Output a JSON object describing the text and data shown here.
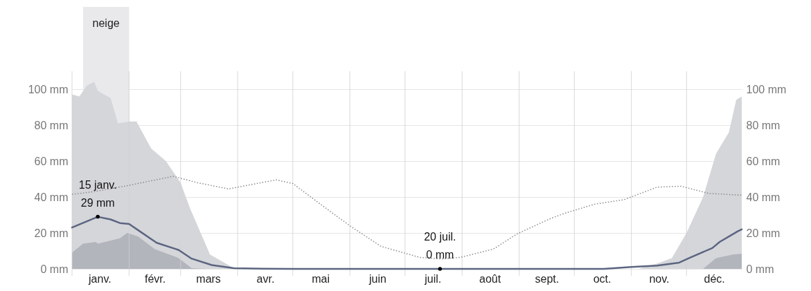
{
  "chart_data": {
    "type": "line",
    "xlim": [
      "--01-01",
      "--12-31"
    ],
    "xticks": [
      {
        "value": "--01-01",
        "label": null
      },
      {
        "value": "--01-16",
        "label": "janv."
      },
      {
        "value": "--02-01",
        "label": null
      },
      {
        "value": "--02-15",
        "label": "févr."
      },
      {
        "value": "--03-01",
        "label": null
      },
      {
        "value": "--03-16",
        "label": "mars"
      },
      {
        "value": "--04-01",
        "label": null
      },
      {
        "value": "--04-16",
        "label": "avr."
      },
      {
        "value": "--05-01",
        "label": null
      },
      {
        "value": "--05-16",
        "label": "mai"
      },
      {
        "value": "--06-01",
        "label": null
      },
      {
        "value": "--06-16",
        "label": "juin"
      },
      {
        "value": "--07-01",
        "label": null
      },
      {
        "value": "--07-16",
        "label": "juil."
      },
      {
        "value": "--08-01",
        "label": null
      },
      {
        "value": "--08-16",
        "label": "août"
      },
      {
        "value": "--09-01",
        "label": null
      },
      {
        "value": "--09-16",
        "label": "sept."
      },
      {
        "value": "--10-01",
        "label": null
      },
      {
        "value": "--10-16",
        "label": "oct."
      },
      {
        "value": "--11-01",
        "label": null
      },
      {
        "value": "--11-16",
        "label": "nov."
      },
      {
        "value": "--12-01",
        "label": null
      },
      {
        "value": "--12-16",
        "label": "déc."
      }
    ],
    "ylim": [
      0,
      110
    ],
    "yticks": [
      {
        "value": 0,
        "label": "0 mm"
      },
      {
        "value": 20,
        "label": "20 mm"
      },
      {
        "value": 40,
        "label": "40 mm"
      },
      {
        "value": 60,
        "label": "60 mm"
      },
      {
        "value": 80,
        "label": "80 mm"
      },
      {
        "value": 100,
        "label": "100 mm"
      }
    ],
    "y2lim": [
      0,
      110
    ],
    "y2ticks": [
      {
        "value": 0,
        "label": "0 mm"
      },
      {
        "value": 20,
        "label": "20 mm"
      },
      {
        "value": 40,
        "label": "40 mm"
      },
      {
        "value": 60,
        "label": "60 mm"
      },
      {
        "value": 80,
        "label": "80 mm"
      },
      {
        "value": 100,
        "label": "100 mm"
      }
    ],
    "grid": true,
    "bands": [
      {
        "axis": "x",
        "from": "--01-07",
        "to": "--02-01",
        "label": "neige",
        "color": "#e9e9ec"
      }
    ],
    "series": [
      {
        "type": "area",
        "color": "#d5d6da",
        "x": [
          "--01-01",
          "--01-05",
          "--01-09",
          "--01-13",
          "--01-15",
          "--01-22",
          "--01-26",
          "--02-01",
          "--02-05",
          "--02-13",
          "--02-21",
          "--03-01",
          "--03-06",
          "--03-17",
          "--03-30",
          "--04-05",
          "--11-05",
          "--11-15",
          "--11-23",
          "--12-01",
          "--12-10",
          "--12-17",
          "--12-24",
          "--12-28",
          "--12-31"
        ],
        "values": [
          97,
          96,
          102,
          104,
          99,
          95,
          81,
          82,
          82,
          67,
          60,
          48,
          34,
          8,
          0.4,
          0,
          0,
          3,
          6,
          20,
          40,
          64,
          76,
          94,
          96
        ]
      },
      {
        "type": "area",
        "color": "#b3b5bd",
        "x": [
          "--01-01",
          "--01-07",
          "--01-14",
          "--01-15",
          "--01-27",
          "--01-31",
          "--02-06",
          "--02-15",
          "--02-28",
          "--03-07",
          "--03-15",
          "--12-10",
          "--12-17",
          "--12-26",
          "--12-31"
        ],
        "values": [
          9,
          14,
          15,
          14,
          17,
          20,
          18,
          11,
          6,
          0.4,
          0,
          0,
          6,
          8,
          8.5
        ]
      },
      {
        "color": "#5b6580",
        "x": [
          "--01-01",
          "--01-15",
          "--01-22",
          "--01-27",
          "--02-01",
          "--02-06",
          "--02-16",
          "--02-28",
          "--03-07",
          "--03-18",
          "--03-30",
          "--04-15",
          "--05-01",
          "--07-20",
          "--10-17",
          "--11-01",
          "--11-15",
          "--11-27",
          "--12-03",
          "--12-15",
          "--12-19",
          "--12-25",
          "--12-29",
          "--12-31"
        ],
        "values": [
          23,
          29,
          27.5,
          25.5,
          25,
          21.5,
          14.5,
          10.5,
          5.7,
          2.1,
          0.4,
          0.1,
          0,
          0,
          0,
          1.1,
          1.8,
          3.5,
          6.3,
          11.6,
          15,
          18.6,
          21,
          22
        ]
      },
      {
        "color": "#8a8a8a",
        "line_style": "dotted",
        "x": [
          "--01-01",
          "--01-13",
          "--02-01",
          "--02-25",
          "--03-10",
          "--03-27",
          "--04-22",
          "--05-01",
          "--05-16",
          "--06-01",
          "--06-18",
          "--07-09",
          "--07-21",
          "--07-31",
          "--08-18",
          "--08-31",
          "--09-18",
          "--09-26",
          "--10-12",
          "--10-28",
          "--11-15",
          "--11-28",
          "--12-13",
          "--12-31"
        ],
        "values": [
          41.5,
          43,
          46.5,
          51.5,
          48,
          44.5,
          49.5,
          47.5,
          36,
          24,
          12.5,
          6.4,
          5.5,
          6.4,
          11,
          19.5,
          28,
          31,
          36,
          38.5,
          45.5,
          46,
          42,
          41
        ]
      }
    ],
    "annotations": [
      {
        "text": "15 janv.\n29 mm",
        "x": "--01-15",
        "y": 29
      },
      {
        "text": "20 juil.\n0 mm",
        "x": "--07-20",
        "y": 0
      }
    ]
  }
}
